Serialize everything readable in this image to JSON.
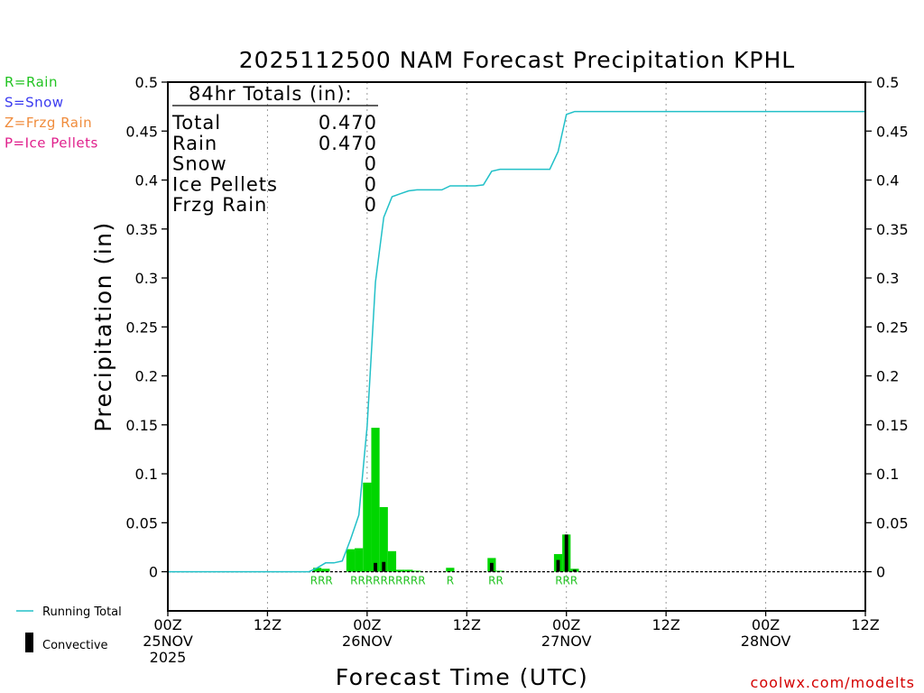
{
  "chart_data": {
    "type": "bar",
    "title": "2025112500 NAM Forecast Precipitation KPHL",
    "xlabel": "Forecast Time (UTC)",
    "ylabel": "Precipitation (in)",
    "ylim": [
      -0.04,
      0.5
    ],
    "xlim_hours": [
      0,
      84
    ],
    "y_ticks": [
      {
        "value": 0.5,
        "label": "0.5"
      },
      {
        "value": 0.45,
        "label": "0.45"
      },
      {
        "value": 0.4,
        "label": "0.4"
      },
      {
        "value": 0.35,
        "label": "0.35"
      },
      {
        "value": 0.3,
        "label": "0.3"
      },
      {
        "value": 0.25,
        "label": "0.25"
      },
      {
        "value": 0.2,
        "label": "0.2"
      },
      {
        "value": 0.15,
        "label": "0.15"
      },
      {
        "value": 0.1,
        "label": "0.1"
      },
      {
        "value": 0.05,
        "label": "0.05"
      },
      {
        "value": 0,
        "label": "0"
      }
    ],
    "x_ticks": [
      {
        "hour": 0,
        "lines": [
          "00Z",
          "25NOV",
          "2025"
        ]
      },
      {
        "hour": 12,
        "lines": [
          "12Z"
        ]
      },
      {
        "hour": 24,
        "lines": [
          "00Z",
          "26NOV"
        ]
      },
      {
        "hour": 36,
        "lines": [
          "12Z"
        ]
      },
      {
        "hour": 48,
        "lines": [
          "00Z",
          "27NOV"
        ]
      },
      {
        "hour": 60,
        "lines": [
          "12Z"
        ]
      },
      {
        "hour": 72,
        "lines": [
          "00Z",
          "28NOV"
        ]
      },
      {
        "hour": 84,
        "lines": [
          "12Z"
        ]
      }
    ],
    "grid_x_hours": [
      12,
      24,
      36,
      48,
      60,
      72
    ],
    "series": [
      {
        "name": "Rain",
        "kind": "bars",
        "color": "#00d600",
        "bars": [
          {
            "hour": 18,
            "value": 0.004
          },
          {
            "hour": 19,
            "value": 0.003
          },
          {
            "hour": 22,
            "value": 0.023
          },
          {
            "hour": 23,
            "value": 0.024
          },
          {
            "hour": 24,
            "value": 0.091
          },
          {
            "hour": 25,
            "value": 0.147
          },
          {
            "hour": 26,
            "value": 0.066
          },
          {
            "hour": 27,
            "value": 0.021
          },
          {
            "hour": 28,
            "value": 0.002
          },
          {
            "hour": 29,
            "value": 0.002
          },
          {
            "hour": 30,
            "value": 0.001
          },
          {
            "hour": 34,
            "value": 0.004
          },
          {
            "hour": 39,
            "value": 0.014
          },
          {
            "hour": 40,
            "value": 0.001
          },
          {
            "hour": 47,
            "value": 0.018
          },
          {
            "hour": 48,
            "value": 0.038
          },
          {
            "hour": 49,
            "value": 0.003
          }
        ]
      },
      {
        "name": "Convective",
        "kind": "bars",
        "color": "#000000",
        "bars": [
          {
            "hour": 25,
            "value": 0.009
          },
          {
            "hour": 26,
            "value": 0.01
          },
          {
            "hour": 39,
            "value": 0.009
          },
          {
            "hour": 47,
            "value": 0.012
          },
          {
            "hour": 48,
            "value": 0.038
          },
          {
            "hour": 49,
            "value": 0.002
          }
        ]
      },
      {
        "name": "Running Total",
        "kind": "line",
        "color": "#22c0c8",
        "points": [
          [
            0,
            0
          ],
          [
            17,
            0
          ],
          [
            18,
            0.004
          ],
          [
            19,
            0.009
          ],
          [
            20,
            0.009
          ],
          [
            21,
            0.011
          ],
          [
            22,
            0.033
          ],
          [
            23,
            0.058
          ],
          [
            24,
            0.149
          ],
          [
            25,
            0.296
          ],
          [
            26,
            0.362
          ],
          [
            27,
            0.383
          ],
          [
            28,
            0.386
          ],
          [
            29,
            0.389
          ],
          [
            30,
            0.39
          ],
          [
            31,
            0.39
          ],
          [
            32,
            0.39
          ],
          [
            33,
            0.39
          ],
          [
            34,
            0.394
          ],
          [
            35,
            0.394
          ],
          [
            36,
            0.394
          ],
          [
            37,
            0.394
          ],
          [
            38,
            0.395
          ],
          [
            39,
            0.409
          ],
          [
            40,
            0.411
          ],
          [
            41,
            0.411
          ],
          [
            42,
            0.411
          ],
          [
            43,
            0.411
          ],
          [
            44,
            0.411
          ],
          [
            45,
            0.411
          ],
          [
            46,
            0.411
          ],
          [
            47,
            0.429
          ],
          [
            48,
            0.467
          ],
          [
            49,
            0.47
          ],
          [
            84,
            0.47
          ]
        ]
      }
    ],
    "ptype_labels": [
      {
        "hour": 18.5,
        "text": "RRR"
      },
      {
        "hour": 26.5,
        "text": "RRRRRRRRRR"
      },
      {
        "hour": 34,
        "text": "R"
      },
      {
        "hour": 39.5,
        "text": "RR"
      },
      {
        "hour": 48,
        "text": "RRR"
      }
    ],
    "totals_box": {
      "heading": "84hr Totals (in):",
      "rows": [
        {
          "label": "Total",
          "value": "0.470"
        },
        {
          "label": "Rain",
          "value": "0.470"
        },
        {
          "label": "Snow",
          "value": "0"
        },
        {
          "label": "Ice Pellets",
          "value": "0"
        },
        {
          "label": "Frzg Rain",
          "value": "0"
        }
      ]
    },
    "ptype_legend": [
      {
        "text": "R=Rain",
        "color": "#22c322"
      },
      {
        "text": "S=Snow",
        "color": "#3a3af0"
      },
      {
        "text": "Z=Frzg Rain",
        "color": "#f08c3c"
      },
      {
        "text": "P=Ice Pellets",
        "color": "#e0208c"
      }
    ],
    "bottom_legend": {
      "line_label": "Running Total",
      "bar_label": "Convective"
    },
    "credit": "coolwx.com/modelts"
  }
}
